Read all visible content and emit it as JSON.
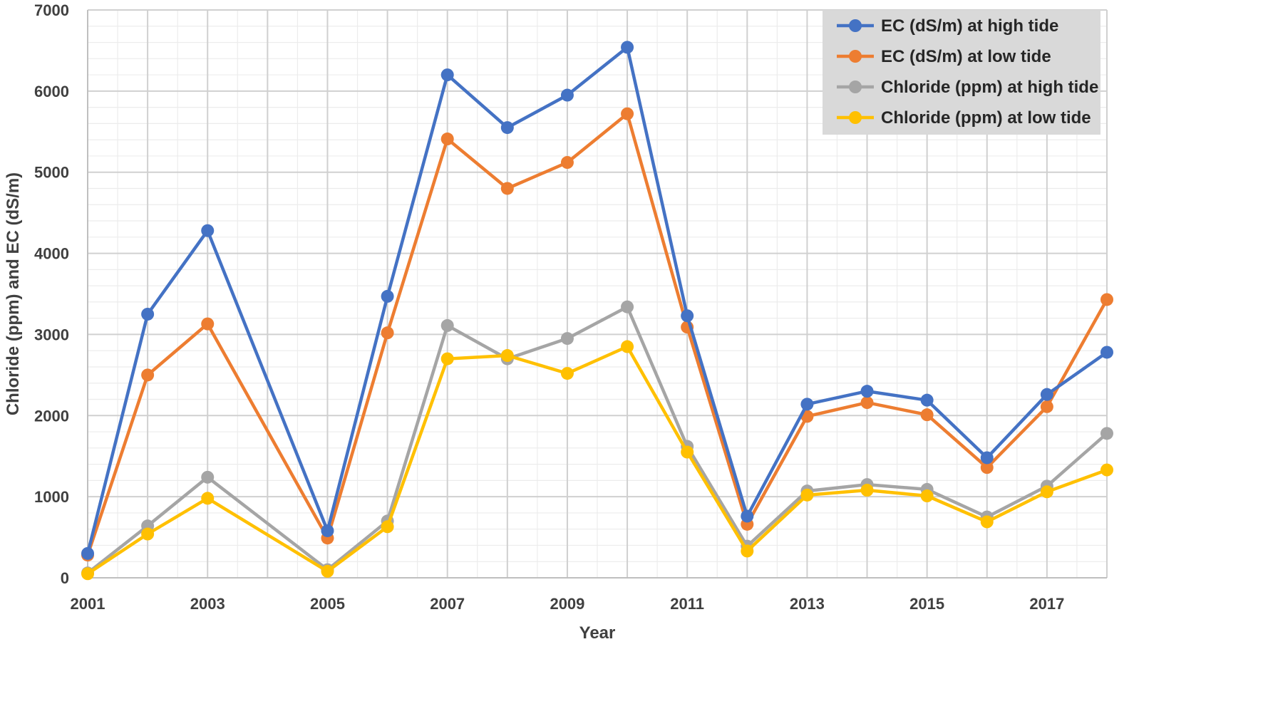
{
  "chart_data": {
    "type": "line",
    "title": "",
    "xlabel": "Year",
    "ylabel": "Chloride (ppm) and EC (dS/m)",
    "xlim": [
      2001,
      2018
    ],
    "ylim": [
      0,
      7000
    ],
    "x_ticks": [
      2001,
      2003,
      2005,
      2007,
      2009,
      2011,
      2013,
      2015,
      2017
    ],
    "y_ticks": [
      0,
      1000,
      2000,
      3000,
      4000,
      5000,
      6000,
      7000
    ],
    "grid": true,
    "legend_position": "top-right",
    "x": [
      2001,
      2002,
      2003,
      2005,
      2006,
      2007,
      2008,
      2009,
      2010,
      2011,
      2012,
      2013,
      2014,
      2015,
      2016,
      2017,
      2018
    ],
    "series": [
      {
        "name": "EC (dS/m) at high tide",
        "color": "#4472C4",
        "values": [
          300,
          3250,
          4280,
          580,
          3470,
          6200,
          5550,
          5950,
          6540,
          3230,
          760,
          2140,
          2300,
          2190,
          1480,
          2260,
          2780
        ]
      },
      {
        "name": "EC (dS/m) at low tide",
        "color": "#ED7D31",
        "values": [
          280,
          2500,
          3130,
          490,
          3020,
          5410,
          4800,
          5120,
          5720,
          3090,
          660,
          1990,
          2160,
          2010,
          1360,
          2110,
          3430
        ]
      },
      {
        "name": "Chloride (ppm) at high tide",
        "color": "#A5A5A5",
        "values": [
          60,
          640,
          1240,
          100,
          700,
          3110,
          2700,
          2950,
          3340,
          1620,
          390,
          1070,
          1150,
          1090,
          750,
          1130,
          1780
        ]
      },
      {
        "name": "Chloride (ppm) at low tide",
        "color": "#FFC000",
        "values": [
          50,
          540,
          980,
          80,
          630,
          2700,
          2740,
          2520,
          2850,
          1550,
          330,
          1020,
          1080,
          1010,
          690,
          1060,
          1330
        ]
      }
    ]
  }
}
